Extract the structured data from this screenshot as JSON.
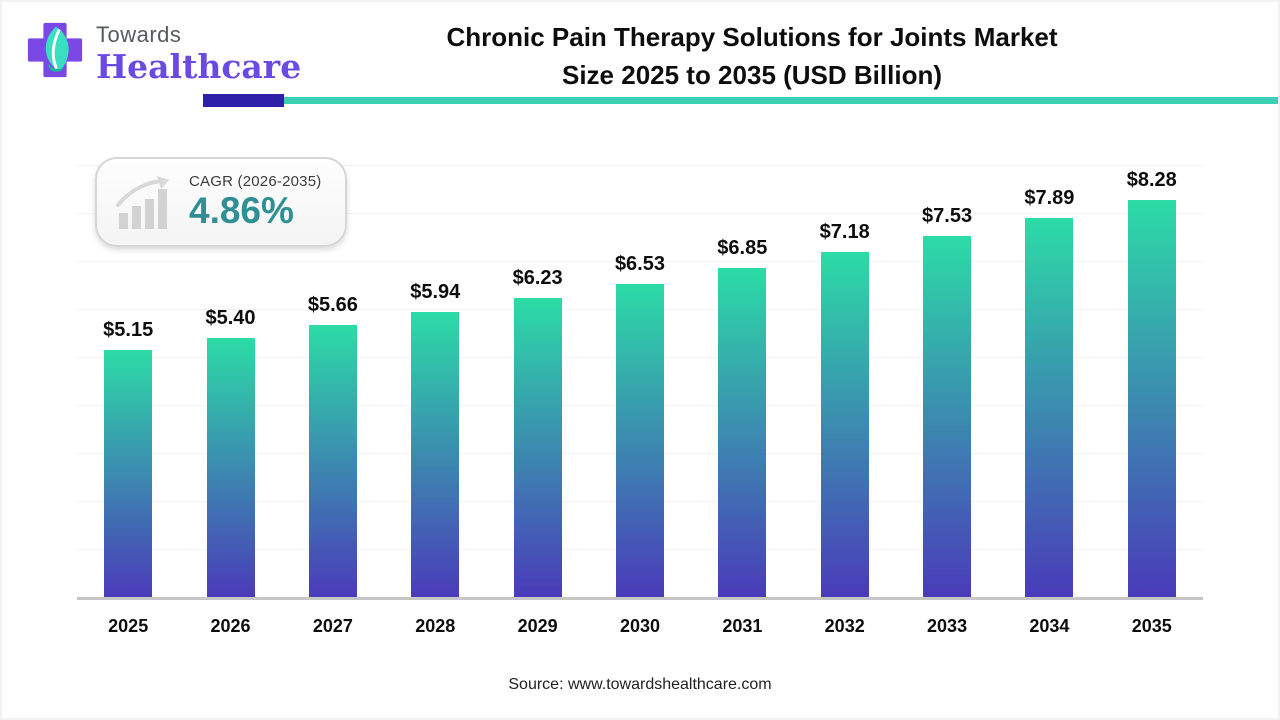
{
  "header": {
    "logo": {
      "towards": "Towards",
      "healthcare": "Healthcare"
    },
    "title_line1": "Chronic Pain Therapy Solutions for Joints Market",
    "title_line2": "Size 2025 to 2035 (USD Billion)"
  },
  "cagr_badge": {
    "label": "CAGR (2026-2035)",
    "value": "4.86%"
  },
  "chart_data": {
    "type": "bar",
    "title": "Chronic Pain Therapy Solutions for Joints Market Size 2025 to 2035 (USD Billion)",
    "categories": [
      "2025",
      "2026",
      "2027",
      "2028",
      "2029",
      "2030",
      "2031",
      "2032",
      "2033",
      "2034",
      "2035"
    ],
    "values": [
      5.15,
      5.4,
      5.66,
      5.94,
      6.23,
      6.53,
      6.85,
      7.18,
      7.53,
      7.89,
      8.28
    ],
    "labels": [
      "$5.15",
      "$5.40",
      "$5.66",
      "$5.94",
      "$6.23",
      "$6.53",
      "$6.85",
      "$7.18",
      "$7.53",
      "$7.89",
      "$8.28"
    ],
    "unit": "USD Billion",
    "xlabel": "",
    "ylabel": "",
    "ylim": [
      0,
      9.375
    ],
    "gridline_step": 1,
    "grid": "horizontal, unlabeled",
    "legend_position": "none",
    "bar_gradient_top": "#2cdca6",
    "bar_gradient_bottom": "#4a3bb9"
  },
  "footer": {
    "source": "Source: www.towardshealthcare.com"
  },
  "colors": {
    "accent_indigo": "#2e20a8",
    "accent_teal": "#3dcfb3",
    "cagr_teal": "#2e8f94",
    "logo_purple": "#6a4ae3",
    "leaf_teal": "#3adfc2",
    "axis_line": "#c6c6c6",
    "gridline": "#f3f3f3",
    "text": "#0d0d0d"
  }
}
